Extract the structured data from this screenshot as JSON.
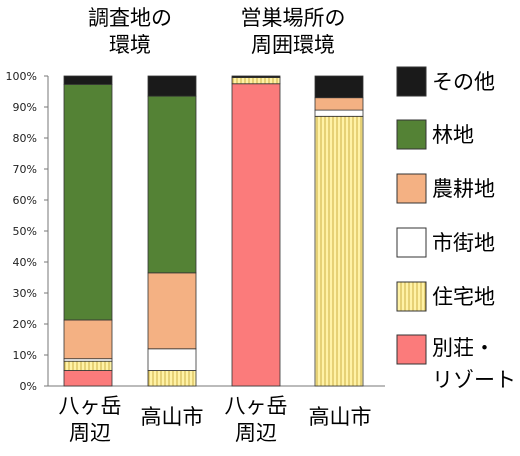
{
  "headers": {
    "group1": [
      "調査地の",
      "環境"
    ],
    "group2": [
      "営巣場所の",
      "周囲環境"
    ]
  },
  "chart_data": {
    "type": "bar",
    "stacked": true,
    "categories": [
      "八ヶ岳周辺",
      "高山市",
      "八ヶ岳周辺",
      "高山市"
    ],
    "category_labels": [
      [
        "八ヶ岳",
        "周辺"
      ],
      [
        "高山市"
      ],
      [
        "八ヶ岳",
        "周辺"
      ],
      [
        "高山市"
      ]
    ],
    "yticks": [
      "0%",
      "10%",
      "20%",
      "30%",
      "40%",
      "50%",
      "60%",
      "70%",
      "80%",
      "90%",
      "100%"
    ],
    "ylim": [
      0,
      100
    ],
    "grid": false,
    "legend_position": "right",
    "series": [
      {
        "name": "別荘・リゾート",
        "color": "#fb7b7b",
        "pattern": "solid",
        "values": [
          5,
          0,
          97.5,
          0
        ]
      },
      {
        "name": "住宅地",
        "color": "#fff2a6",
        "pattern": "stripes",
        "values": [
          3,
          5,
          2,
          87
        ]
      },
      {
        "name": "市街地",
        "color": "#ffffff",
        "pattern": "solid",
        "values": [
          0.8,
          7,
          0,
          2
        ]
      },
      {
        "name": "農耕地",
        "color": "#f4b183",
        "pattern": "solid",
        "values": [
          12.5,
          24.5,
          0,
          4
        ]
      },
      {
        "name": "林地",
        "color": "#548235",
        "pattern": "solid",
        "values": [
          76,
          57,
          0,
          0
        ]
      },
      {
        "name": "その他",
        "color": "#1a1a1a",
        "pattern": "solid",
        "values": [
          2.7,
          6.5,
          0.5,
          7
        ]
      }
    ],
    "legend": [
      {
        "label": "その他",
        "color": "#1a1a1a",
        "pattern": "solid"
      },
      {
        "label": "林地",
        "color": "#548235",
        "pattern": "solid"
      },
      {
        "label": "農耕地",
        "color": "#f4b183",
        "pattern": "solid"
      },
      {
        "label": "市街地",
        "color": "#ffffff",
        "pattern": "solid"
      },
      {
        "label": "住宅地",
        "color": "#fff2a6",
        "pattern": "stripes"
      },
      {
        "label": [
          "別荘・",
          "リゾート"
        ],
        "color": "#fb7b7b",
        "pattern": "solid"
      }
    ]
  }
}
